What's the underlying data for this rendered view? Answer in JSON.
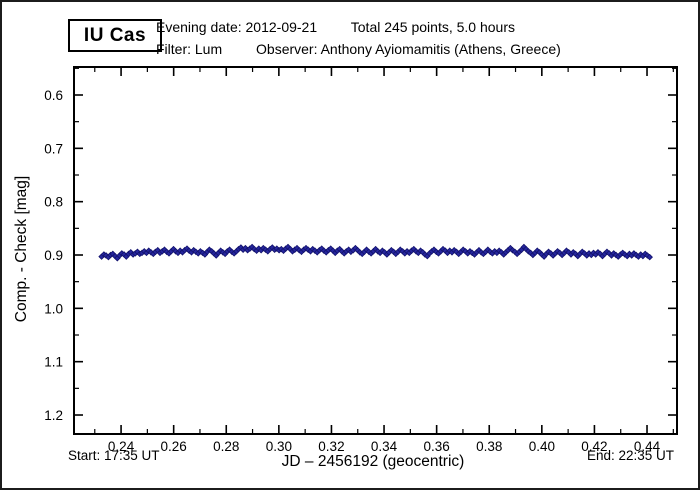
{
  "header": {
    "star_name": "IU Cas",
    "evening_date": "Evening date: 2012-09-21",
    "total_points": "Total 245 points, 5.0 hours",
    "filter": "Filter: Lum",
    "observer": "Observer: Anthony Ayiomamitis (Athens, Greece)"
  },
  "footer": {
    "start": "Start: 17:35 UT",
    "end": "End: 22:35 UT"
  },
  "chart_data": {
    "type": "scatter",
    "title": "IU Cas",
    "xlabel": "JD – 2456192  (geocentric)",
    "ylabel": "Comp. - Check [mag]",
    "grid": false,
    "legend": null,
    "x_axis": {
      "range": [
        0.2221,
        0.4514
      ],
      "major_ticks": [
        0.24,
        0.26,
        0.28,
        0.3,
        0.32,
        0.34,
        0.36,
        0.38,
        0.4,
        0.42,
        0.44
      ],
      "major_labels": [
        "0.24",
        "0.26",
        "0.28",
        "0.30",
        "0.32",
        "0.34",
        "0.36",
        "0.38",
        "0.40",
        "0.42",
        "0.44"
      ],
      "minor_ticks": [
        0.23,
        0.25,
        0.27,
        0.29,
        0.31,
        0.33,
        0.35,
        0.37,
        0.39,
        0.41,
        0.43,
        0.45
      ]
    },
    "y_axis": {
      "range_top_to_bottom": [
        0.5475,
        1.2356
      ],
      "inverted_magnitude_axis": true,
      "major_ticks": [
        0.6,
        0.7,
        0.8,
        0.9,
        1.0,
        1.1,
        1.2
      ],
      "major_labels": [
        "0.6",
        "0.7",
        "0.8",
        "0.9",
        "1.0",
        "1.1",
        "1.2"
      ],
      "minor_ticks": [
        0.55,
        0.65,
        0.75,
        0.85,
        0.95,
        1.05,
        1.15
      ]
    },
    "marker": {
      "shape": "diamond",
      "fill": "#26269e",
      "stroke": "#12126b",
      "radius": 2.7
    },
    "frame_color": "#000000",
    "points": {
      "count": 245,
      "x_start": 0.2326,
      "x_end": 0.441,
      "y": [
        0.903,
        0.899,
        0.901,
        0.904,
        0.9,
        0.898,
        0.902,
        0.906,
        0.901,
        0.897,
        0.899,
        0.903,
        0.898,
        0.895,
        0.899,
        0.897,
        0.894,
        0.898,
        0.896,
        0.893,
        0.896,
        0.892,
        0.895,
        0.898,
        0.894,
        0.891,
        0.896,
        0.893,
        0.89,
        0.894,
        0.897,
        0.893,
        0.889,
        0.893,
        0.896,
        0.892,
        0.895,
        0.891,
        0.888,
        0.892,
        0.895,
        0.891,
        0.894,
        0.897,
        0.893,
        0.896,
        0.899,
        0.894,
        0.89,
        0.893,
        0.897,
        0.901,
        0.896,
        0.892,
        0.895,
        0.898,
        0.893,
        0.89,
        0.894,
        0.897,
        0.893,
        0.889,
        0.886,
        0.89,
        0.887,
        0.891,
        0.888,
        0.885,
        0.889,
        0.892,
        0.888,
        0.891,
        0.887,
        0.89,
        0.893,
        0.889,
        0.886,
        0.89,
        0.888,
        0.891,
        0.889,
        0.892,
        0.888,
        0.885,
        0.889,
        0.893,
        0.89,
        0.887,
        0.891,
        0.894,
        0.89,
        0.887,
        0.89,
        0.893,
        0.889,
        0.892,
        0.895,
        0.891,
        0.888,
        0.892,
        0.895,
        0.891,
        0.888,
        0.892,
        0.896,
        0.892,
        0.889,
        0.893,
        0.897,
        0.893,
        0.89,
        0.894,
        0.891,
        0.887,
        0.891,
        0.895,
        0.898,
        0.894,
        0.89,
        0.894,
        0.897,
        0.893,
        0.889,
        0.893,
        0.896,
        0.892,
        0.895,
        0.899,
        0.895,
        0.891,
        0.894,
        0.898,
        0.894,
        0.89,
        0.893,
        0.897,
        0.893,
        0.896,
        0.892,
        0.889,
        0.893,
        0.896,
        0.892,
        0.895,
        0.899,
        0.902,
        0.897,
        0.893,
        0.89,
        0.894,
        0.897,
        0.893,
        0.889,
        0.892,
        0.896,
        0.892,
        0.895,
        0.891,
        0.894,
        0.898,
        0.894,
        0.89,
        0.893,
        0.897,
        0.893,
        0.896,
        0.899,
        0.895,
        0.891,
        0.895,
        0.898,
        0.894,
        0.89,
        0.894,
        0.897,
        0.893,
        0.896,
        0.892,
        0.895,
        0.899,
        0.895,
        0.891,
        0.887,
        0.891,
        0.894,
        0.898,
        0.894,
        0.89,
        0.885,
        0.889,
        0.893,
        0.896,
        0.9,
        0.896,
        0.892,
        0.895,
        0.899,
        0.903,
        0.898,
        0.894,
        0.897,
        0.901,
        0.897,
        0.893,
        0.896,
        0.9,
        0.896,
        0.892,
        0.895,
        0.899,
        0.895,
        0.898,
        0.902,
        0.898,
        0.894,
        0.897,
        0.901,
        0.897,
        0.9,
        0.896,
        0.899,
        0.895,
        0.898,
        0.902,
        0.898,
        0.894,
        0.897,
        0.901,
        0.897,
        0.9,
        0.903,
        0.899,
        0.896,
        0.899,
        0.902,
        0.898,
        0.901,
        0.897,
        0.9,
        0.903,
        0.899,
        0.902,
        0.898,
        0.901,
        0.904
      ]
    }
  }
}
